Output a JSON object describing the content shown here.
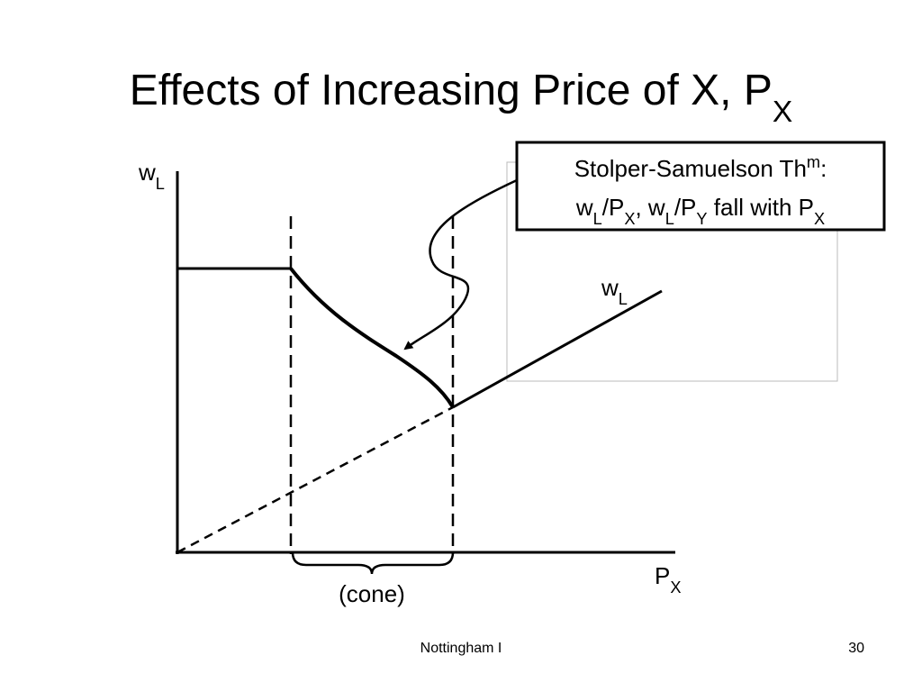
{
  "title": {
    "main": "Effects of Increasing Price of X, P",
    "sub": "X"
  },
  "y_axis_label": {
    "main": "w",
    "sub": "L"
  },
  "x_axis_label": {
    "main": "P",
    "sub": "X"
  },
  "curve_label": {
    "main": "w",
    "sub": "L"
  },
  "cone_label": "(cone)",
  "callout": {
    "line1": [
      "Stolper-Samuelson Th",
      "m",
      ":"
    ],
    "line2": [
      "w",
      "L",
      "/P",
      "X",
      ", w",
      "L",
      "/P",
      "Y",
      " fall with P",
      "X"
    ]
  },
  "footer": {
    "center": "Nottingham I",
    "page": "30"
  }
}
